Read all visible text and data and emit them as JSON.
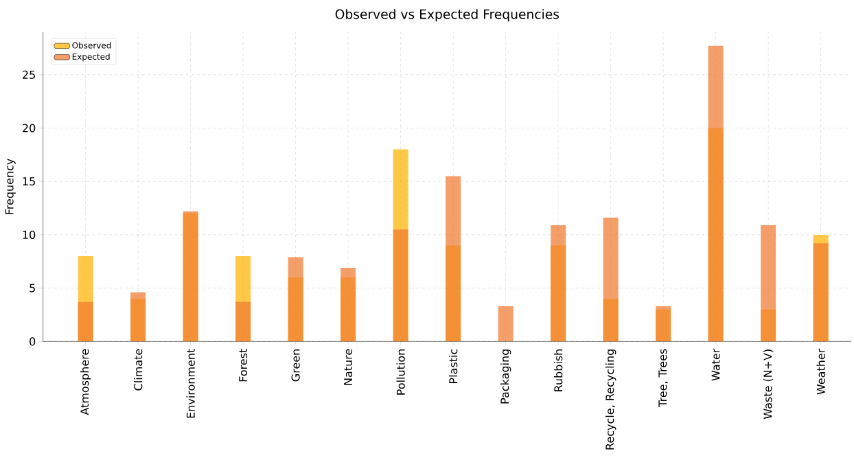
{
  "chart_data": {
    "type": "bar",
    "title": "Observed vs Expected Frequencies",
    "ylabel": "Frequency",
    "categories": [
      "Atmosphere",
      "Climate",
      "Environment",
      "Forest",
      "Green",
      "Nature",
      "Pollution",
      "Plastic",
      "Packaging",
      "Rubbish",
      "Recycle, Recycling",
      "Tree, Trees",
      "Water",
      "Waste (N+V)",
      "Weather"
    ],
    "series": [
      {
        "name": "Observed",
        "color": "#ffb300",
        "values": [
          8,
          4,
          12,
          8,
          6,
          6,
          18,
          9,
          0,
          9,
          4,
          3,
          20,
          3,
          10
        ]
      },
      {
        "name": "Expected",
        "color": "#f07a30",
        "values": [
          3.7,
          4.6,
          12.2,
          3.7,
          7.9,
          6.9,
          10.5,
          15.5,
          3.3,
          10.9,
          11.6,
          3.3,
          27.7,
          10.9,
          9.2
        ]
      }
    ],
    "ylim": [
      0,
      29
    ],
    "yticks": [
      0,
      5,
      10,
      15,
      20,
      25
    ],
    "grid": true,
    "legend": "top left"
  }
}
